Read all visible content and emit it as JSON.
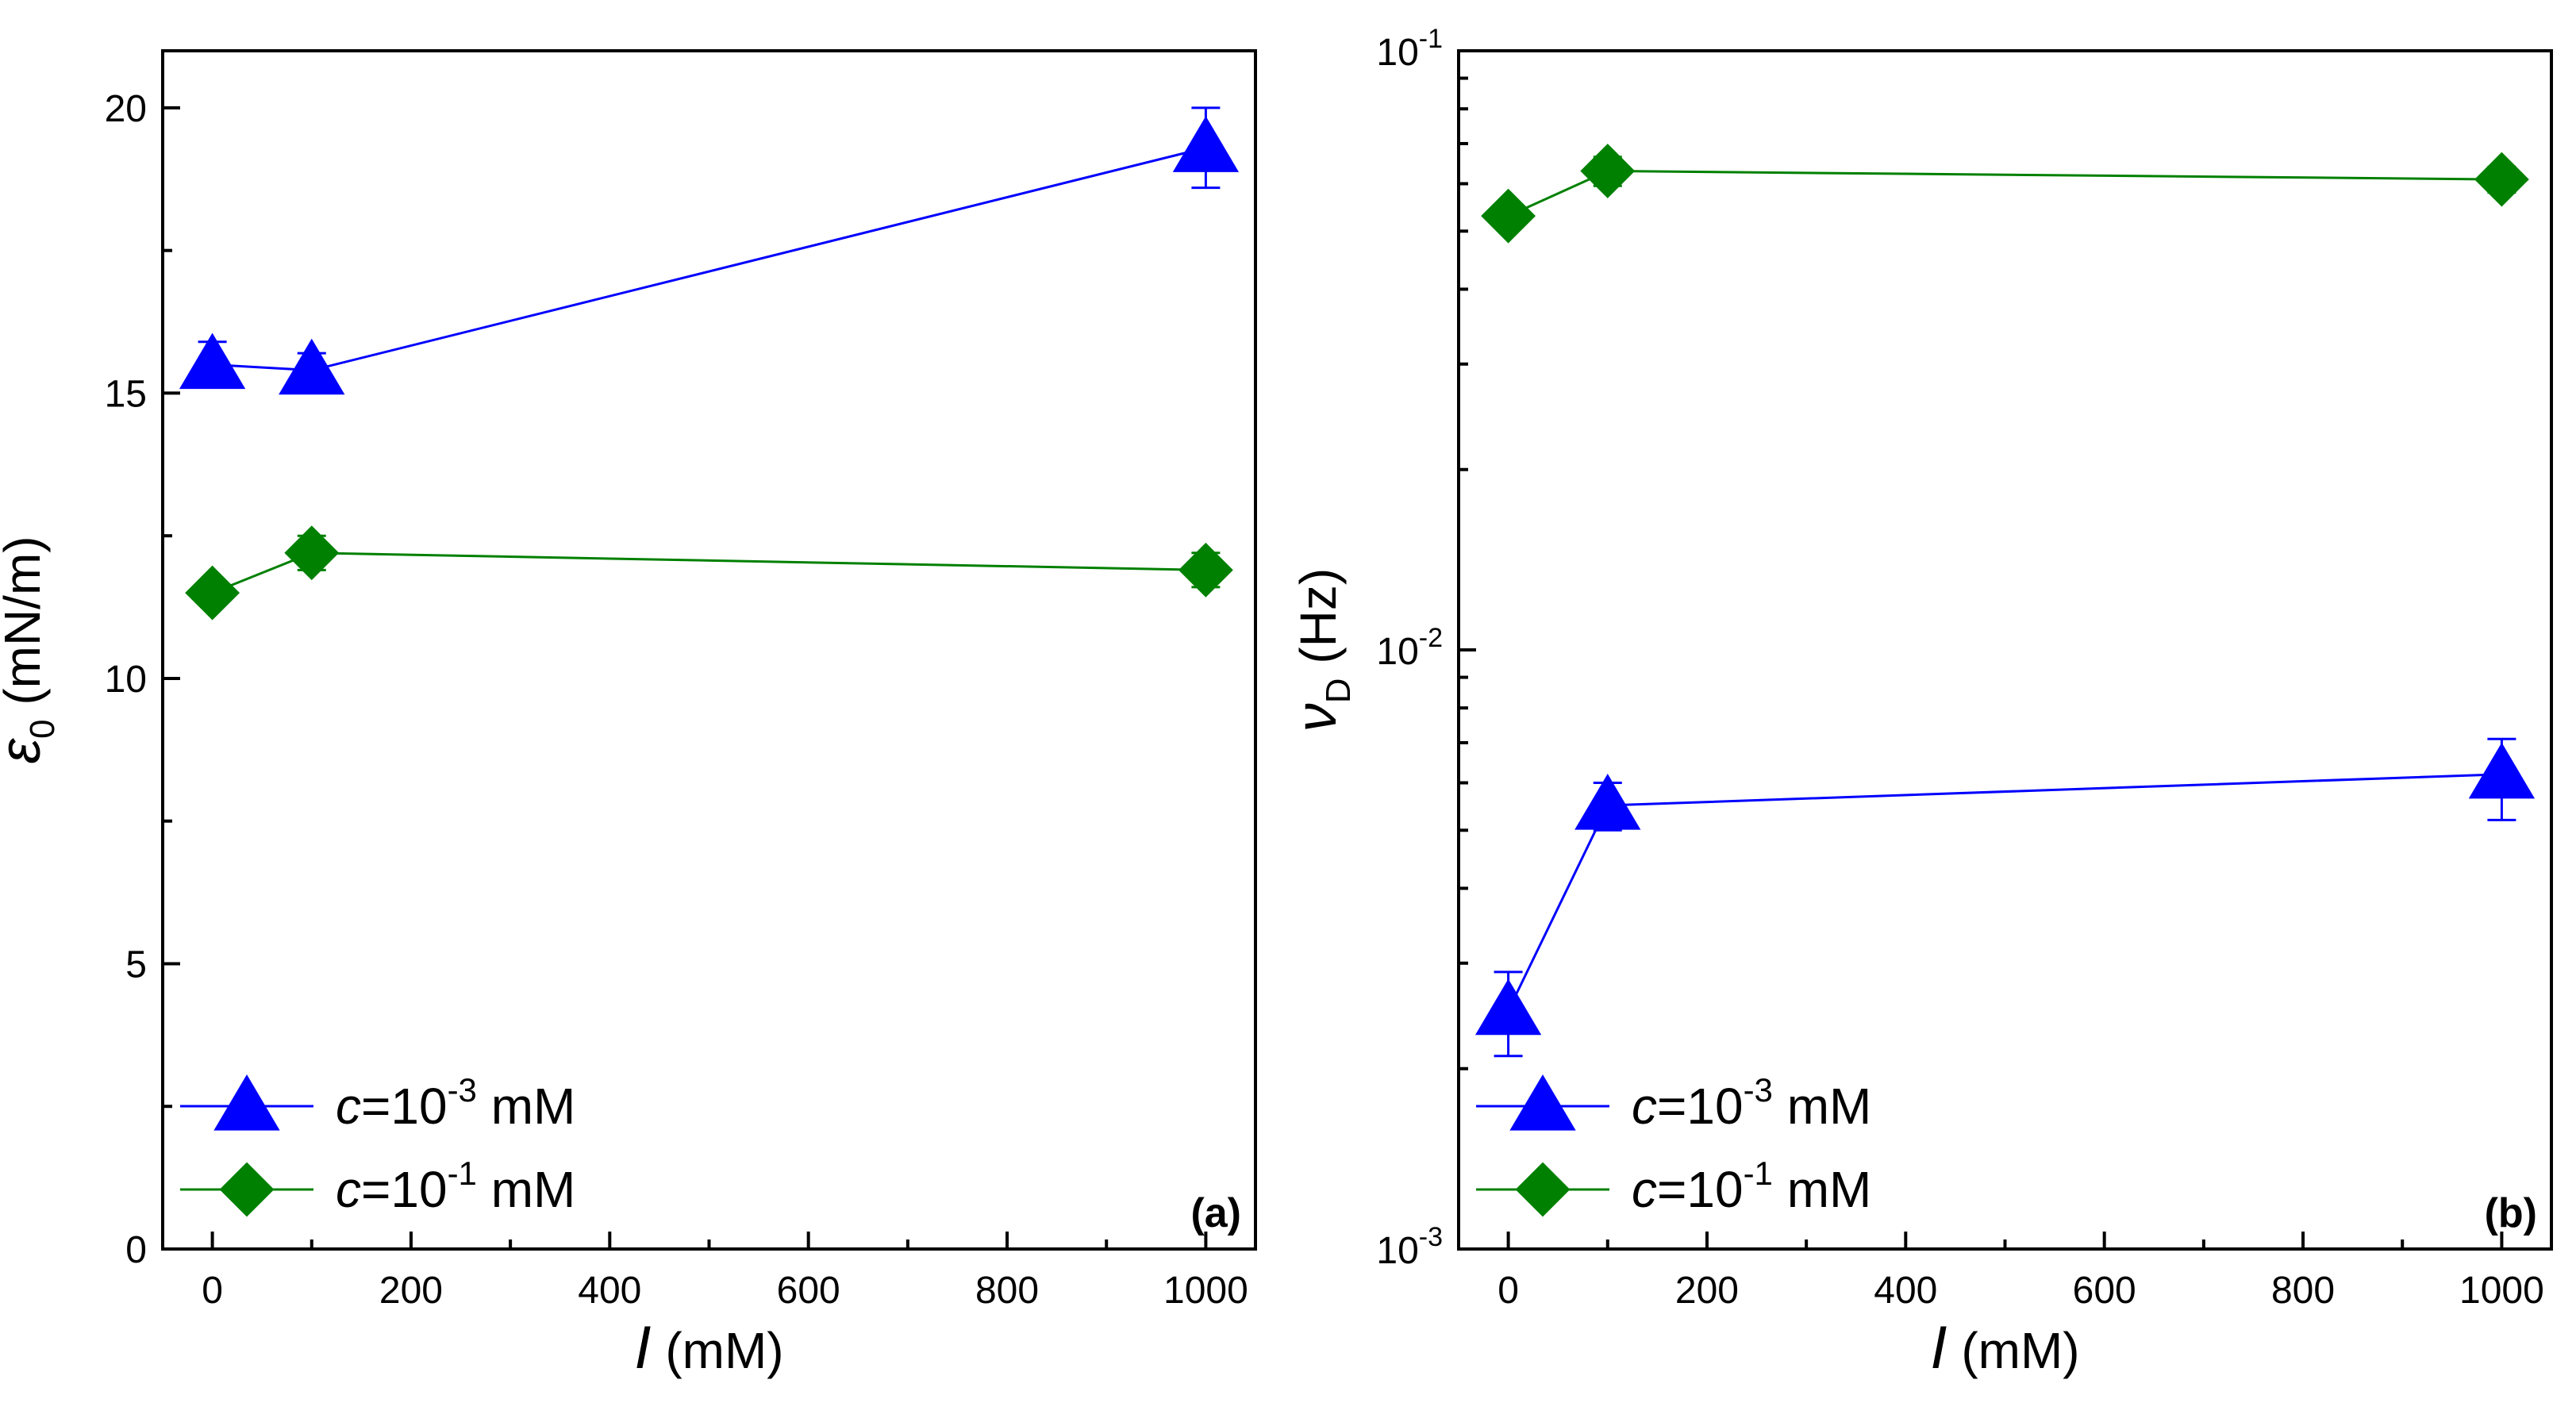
{
  "chart_data": [
    {
      "panel": "(a)",
      "type": "line",
      "xscale": "linear",
      "yscale": "linear",
      "xlim": [
        -50,
        1050
      ],
      "ylim": [
        0,
        21
      ],
      "xticks": [
        0,
        200,
        400,
        600,
        800,
        1000
      ],
      "xtick_labels": [
        "0",
        "200",
        "400",
        "600",
        "800",
        "1000"
      ],
      "yticks": [
        0,
        5,
        10,
        15,
        20
      ],
      "ytick_labels": [
        "0",
        "5",
        "10",
        "15",
        "20"
      ],
      "xlabel": {
        "symbol": "I",
        "unit": "(mM)"
      },
      "ylabel": {
        "symbol": "ε",
        "sub": "0",
        "unit": "(mN/m)"
      },
      "legend_position": "bottom-left",
      "series": [
        {
          "name": {
            "var": "c",
            "eq": "=10",
            "exp": "-3",
            "unit": " mM"
          },
          "marker": "triangle",
          "color": "#0000ff",
          "x": [
            0,
            100,
            1000
          ],
          "y": [
            15.5,
            15.4,
            19.3
          ],
          "yerr_low": [
            15.1,
            15.1,
            18.6
          ],
          "yerr_high": [
            15.9,
            15.7,
            20.0
          ]
        },
        {
          "name": {
            "var": "c",
            "eq": "=10",
            "exp": "-1",
            "unit": " mM"
          },
          "marker": "diamond",
          "color": "#008000",
          "x": [
            0,
            100,
            1000
          ],
          "y": [
            11.5,
            12.2,
            11.9
          ],
          "yerr_low": [
            11.4,
            11.9,
            11.6
          ],
          "yerr_high": [
            11.6,
            12.5,
            12.2
          ]
        }
      ]
    },
    {
      "panel": "(b)",
      "type": "line",
      "xscale": "linear",
      "yscale": "log",
      "xlim": [
        -50,
        1050
      ],
      "ylim": [
        0.001,
        0.1
      ],
      "xticks": [
        0,
        200,
        400,
        600,
        800,
        1000
      ],
      "xtick_labels": [
        "0",
        "200",
        "400",
        "600",
        "800",
        "1000"
      ],
      "yticks": [
        0.001,
        0.01,
        0.1
      ],
      "ytick_labels": [
        {
          "base": "10",
          "exp": "-3"
        },
        {
          "base": "10",
          "exp": "-2"
        },
        {
          "base": "10",
          "exp": "-1"
        }
      ],
      "xlabel": {
        "symbol": "I",
        "unit": "(mM)"
      },
      "ylabel": {
        "symbol": "ν",
        "sub": "D",
        "unit": "(Hz)"
      },
      "legend_position": "bottom-left",
      "series": [
        {
          "name": {
            "var": "c",
            "eq": "=10",
            "exp": "-3",
            "unit": " mM"
          },
          "marker": "triangle",
          "color": "#0000ff",
          "x": [
            0,
            100,
            1000
          ],
          "y": [
            0.0025,
            0.0055,
            0.0062
          ],
          "yerr_low": [
            0.0021,
            0.005,
            0.0052
          ],
          "yerr_high": [
            0.0029,
            0.006,
            0.0071
          ]
        },
        {
          "name": {
            "var": "c",
            "eq": "=10",
            "exp": "-1",
            "unit": " mM"
          },
          "marker": "diamond",
          "color": "#008000",
          "x": [
            0,
            100,
            1000
          ],
          "y": [
            0.053,
            0.063,
            0.061
          ],
          "yerr_low": [
            0.051,
            0.0595,
            0.058
          ],
          "yerr_high": [
            0.055,
            0.0665,
            0.064
          ]
        }
      ]
    }
  ]
}
